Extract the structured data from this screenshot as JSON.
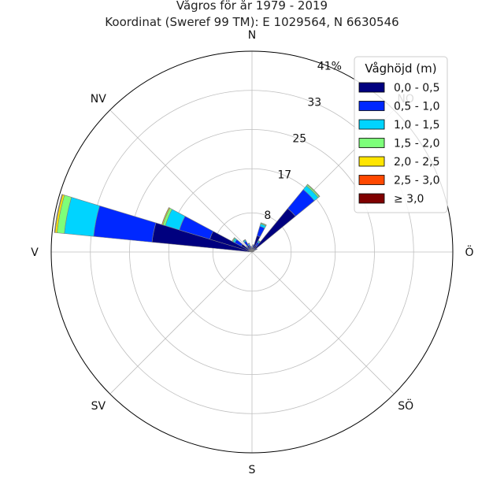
{
  "chart_data": {
    "type": "windrose",
    "title": "Vågros för år 1979 - 2019",
    "subtitle": "Koordinat (Sweref 99 TM): E 1029564, N 6630546",
    "directions": [
      "N",
      "NO",
      "Ö",
      "SÖ",
      "S",
      "SV",
      "V",
      "NV"
    ],
    "radial_ticks": [
      8,
      17,
      25,
      33,
      41
    ],
    "radial_tick_suffix": "%",
    "rmax": 41,
    "grid": true,
    "legend": {
      "title": "Våghöjd (m)",
      "placement": "top-right",
      "entries": [
        {
          "label": "0,0 - 0,5",
          "color": "#00007f"
        },
        {
          "label": "0,5 - 1,0",
          "color": "#0028ff"
        },
        {
          "label": "1,0 - 1,5",
          "color": "#00d4ff"
        },
        {
          "label": "1,5 - 2,0",
          "color": "#7dff7a"
        },
        {
          "label": "2,0 - 2,5",
          "color": "#ffe500"
        },
        {
          "label": "2,5 - 3,0",
          "color": "#ff4800"
        },
        {
          "label": "≥ 3,0",
          "color": "#7f0000"
        }
      ]
    },
    "sector_width_deg": 11.25,
    "sectors": [
      {
        "direction_deg": 281.25,
        "values": [
          20.5,
          12.0,
          6.0,
          1.5,
          0.4,
          0.1,
          0.05
        ]
      },
      {
        "direction_deg": 292.5,
        "values": [
          9.0,
          6.5,
          3.0,
          0.5,
          0.2,
          0.05,
          0.0
        ]
      },
      {
        "direction_deg": 303.75,
        "values": [
          2.5,
          1.5,
          0.4,
          0.2,
          0.05,
          0.0,
          0.0
        ]
      },
      {
        "direction_deg": 315.0,
        "values": [
          0.8,
          0.5,
          0.2,
          0.05,
          0.0,
          0.0,
          0.0
        ]
      },
      {
        "direction_deg": 326.25,
        "values": [
          1.5,
          1.0,
          0.3,
          0.1,
          0.0,
          0.0,
          0.0
        ]
      },
      {
        "direction_deg": 337.5,
        "values": [
          1.0,
          0.5,
          0.3,
          0.1,
          0.0,
          0.0,
          0.0
        ]
      },
      {
        "direction_deg": 348.75,
        "values": [
          0.8,
          0.3,
          0.1,
          0.0,
          0.0,
          0.0,
          0.0
        ]
      },
      {
        "direction_deg": 0.0,
        "values": [
          0.6,
          0.2,
          0.1,
          0.0,
          0.0,
          0.0,
          0.0
        ]
      },
      {
        "direction_deg": 11.25,
        "values": [
          1.0,
          0.4,
          0.1,
          0.0,
          0.0,
          0.0,
          0.0
        ]
      },
      {
        "direction_deg": 22.5,
        "values": [
          3.5,
          2.0,
          0.5,
          0.2,
          0.05,
          0.0,
          0.0
        ]
      },
      {
        "direction_deg": 33.75,
        "values": [
          1.5,
          0.8,
          0.3,
          0.1,
          0.0,
          0.0,
          0.0
        ]
      },
      {
        "direction_deg": 45.0,
        "values": [
          11.5,
          5.0,
          1.0,
          0.3,
          0.1,
          0.0,
          0.0
        ]
      },
      {
        "direction_deg": 56.25,
        "values": [
          0.8,
          0.3,
          0.1,
          0.0,
          0.0,
          0.0,
          0.0
        ]
      },
      {
        "direction_deg": 67.5,
        "values": [
          0.3,
          0.1,
          0.0,
          0.0,
          0.0,
          0.0,
          0.0
        ]
      }
    ]
  }
}
